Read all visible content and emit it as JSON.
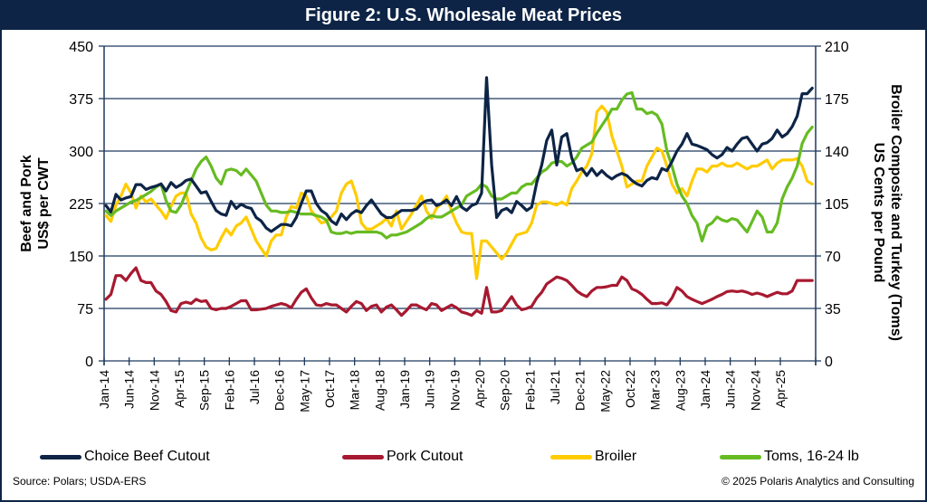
{
  "title": "Figure 2: U.S. Wholesale Meat Prices",
  "source": "Source: Polars; USDA-ERS",
  "copyright": "© 2025 Polaris Analytics and Consulting",
  "chart_data": {
    "type": "line",
    "title": "Figure 2: U.S. Wholesale Meat Prices",
    "ylabel_left": [
      "Beef and Pork",
      "US$ per CWT"
    ],
    "ylabel_right": [
      "Broiler Composite and Turkey (Toms)",
      "US Cents per Pound"
    ],
    "ylim_left": [
      0,
      450
    ],
    "ylim_right": [
      0,
      210
    ],
    "yticks_left": [
      "0",
      "75",
      "150",
      "225",
      "300",
      "375",
      "450"
    ],
    "yticks_right": [
      "0",
      "35",
      "70",
      "105",
      "140",
      "175",
      "210"
    ],
    "x_start": "Jan-14",
    "x_ticks": [
      "Jan-14",
      "Jun-14",
      "Nov-14",
      "Apr-15",
      "Sep-15",
      "Feb-16",
      "Jul-16",
      "Dec-16",
      "May-17",
      "Oct-17",
      "Mar-18",
      "Aug-18",
      "Jan-19",
      "Jun-19",
      "Nov-19",
      "Apr-20",
      "Sep-20",
      "Feb-21",
      "Jul-21",
      "Dec-21",
      "May-22",
      "Oct-22",
      "Mar-23",
      "Aug-23",
      "Jan-24",
      "Jun-24",
      "Nov-24",
      "Apr-25"
    ],
    "grid": true,
    "legend": "bottom",
    "series": [
      {
        "name": "Choice Beef Cutout",
        "color": "#0d2446",
        "axis": "left",
        "values": [
          222,
          213,
          238,
          230,
          233,
          235,
          252,
          252,
          245,
          248,
          250,
          253,
          243,
          255,
          248,
          252,
          258,
          260,
          250,
          240,
          242,
          228,
          215,
          210,
          208,
          228,
          218,
          224,
          220,
          218,
          205,
          200,
          190,
          185,
          190,
          195,
          195,
          193,
          205,
          225,
          243,
          243,
          225,
          215,
          210,
          200,
          195,
          210,
          202,
          210,
          215,
          212,
          222,
          230,
          220,
          210,
          205,
          205,
          210,
          215,
          215,
          215,
          217,
          225,
          229,
          230,
          222,
          225,
          230,
          222,
          235,
          220,
          215,
          222,
          225,
          240,
          405,
          280,
          205,
          215,
          218,
          212,
          228,
          222,
          215,
          220,
          255,
          280,
          315,
          330,
          280,
          320,
          325,
          290,
          272,
          275,
          265,
          275,
          265,
          272,
          265,
          260,
          265,
          268,
          265,
          258,
          253,
          250,
          258,
          262,
          260,
          275,
          272,
          285,
          300,
          310,
          325,
          310,
          308,
          305,
          302,
          295,
          290,
          295,
          305,
          300,
          310,
          318,
          320,
          310,
          300,
          310,
          312,
          318,
          330,
          320,
          325,
          335,
          350,
          382,
          382,
          390
        ]
      },
      {
        "name": "Pork Cutout",
        "color": "#a71930",
        "axis": "left",
        "values": [
          88,
          95,
          122,
          122,
          115,
          125,
          133,
          115,
          112,
          112,
          100,
          95,
          85,
          72,
          70,
          82,
          84,
          82,
          88,
          85,
          86,
          75,
          73,
          75,
          75,
          78,
          82,
          86,
          86,
          73,
          73,
          74,
          75,
          78,
          80,
          82,
          80,
          76,
          88,
          98,
          103,
          90,
          80,
          79,
          82,
          80,
          80,
          75,
          70,
          78,
          85,
          82,
          72,
          78,
          80,
          70,
          77,
          80,
          73,
          65,
          72,
          80,
          80,
          76,
          73,
          82,
          80,
          72,
          76,
          80,
          76,
          70,
          68,
          65,
          72,
          68,
          105,
          70,
          70,
          72,
          82,
          92,
          80,
          73,
          75,
          78,
          90,
          98,
          110,
          115,
          120,
          118,
          115,
          108,
          100,
          95,
          92,
          100,
          105,
          105,
          106,
          108,
          108,
          120,
          115,
          103,
          100,
          95,
          88,
          82,
          82,
          83,
          80,
          90,
          105,
          100,
          92,
          88,
          85,
          82,
          85,
          88,
          92,
          95,
          99,
          100,
          99,
          100,
          98,
          95,
          97,
          95,
          92,
          95,
          98,
          96,
          96,
          100,
          115,
          115,
          115,
          115
        ]
      },
      {
        "name": "Broiler",
        "color": "#ffcc00",
        "axis": "right",
        "values": [
          97,
          93,
          104,
          110,
          118,
          112,
          102,
          110,
          106,
          108,
          104,
          100,
          95,
          103,
          110,
          112,
          112,
          98,
          92,
          82,
          76,
          74,
          75,
          82,
          88,
          84,
          90,
          92,
          96,
          88,
          80,
          75,
          70,
          80,
          84,
          84,
          96,
          103,
          102,
          112,
          110,
          100,
          96,
          92,
          93,
          96,
          100,
          112,
          118,
          120,
          110,
          92,
          88,
          88,
          90,
          92,
          95,
          90,
          100,
          88,
          93,
          98,
          104,
          110,
          100,
          95,
          102,
          105,
          110,
          100,
          92,
          86,
          85,
          85,
          55,
          80,
          80,
          76,
          72,
          68,
          72,
          78,
          84,
          85,
          86,
          92,
          104,
          106,
          106,
          105,
          104,
          106,
          104,
          115,
          120,
          126,
          130,
          138,
          166,
          170,
          166,
          150,
          140,
          130,
          116,
          118,
          120,
          120,
          130,
          136,
          142,
          140,
          130,
          118,
          112,
          115,
          110,
          120,
          128,
          128,
          126,
          130,
          130,
          132,
          130,
          130,
          132,
          130,
          128,
          130,
          130,
          132,
          134,
          128,
          132,
          134,
          134,
          134,
          135,
          130,
          120,
          118
        ]
      },
      {
        "name": "Toms, 16-24 lb",
        "color": "#66bb22",
        "axis": "right",
        "values": [
          100,
          97,
          100,
          102,
          104,
          106,
          107,
          109,
          111,
          113,
          116,
          118,
          107,
          100,
          99,
          104,
          112,
          120,
          128,
          133,
          136,
          130,
          122,
          118,
          127,
          128,
          127,
          124,
          128,
          124,
          120,
          112,
          104,
          100,
          100,
          99,
          99,
          100,
          99,
          98,
          98,
          98,
          97,
          96,
          94,
          86,
          85,
          85,
          86,
          85,
          86,
          86,
          86,
          86,
          86,
          85,
          82,
          84,
          84,
          85,
          86,
          88,
          90,
          92,
          95,
          97,
          96,
          96,
          98,
          100,
          102,
          104,
          110,
          112,
          114,
          118,
          116,
          110,
          108,
          108,
          110,
          112,
          112,
          116,
          118,
          118,
          122,
          126,
          128,
          132,
          133,
          133,
          130,
          132,
          136,
          142,
          144,
          146,
          152,
          157,
          162,
          168,
          168,
          174,
          178,
          179,
          168,
          168,
          165,
          166,
          164,
          158,
          140,
          130,
          118,
          110,
          105,
          97,
          92,
          80,
          90,
          92,
          96,
          94,
          93,
          95,
          94,
          90,
          86,
          93,
          100,
          96,
          86,
          86,
          92,
          108,
          116,
          122,
          130,
          145,
          152,
          156
        ]
      }
    ]
  }
}
